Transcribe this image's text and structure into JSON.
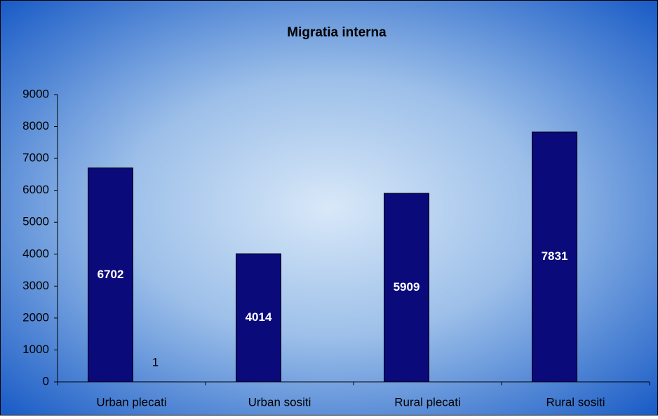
{
  "chart_data": {
    "type": "bar",
    "title": "Migratia interna",
    "categories": [
      "Urban plecati",
      "Urban sositi",
      "Rural plecati",
      "Rural sositi"
    ],
    "series": [
      {
        "color": "#0a0a7a",
        "values": [
          6702,
          4014,
          5909,
          7831
        ]
      },
      {
        "color": "#0a0a7a",
        "values": [
          1,
          null,
          null,
          null
        ]
      }
    ],
    "ylim": [
      0,
      9000
    ],
    "yticks": [
      0,
      1000,
      2000,
      3000,
      4000,
      5000,
      6000,
      7000,
      8000,
      9000
    ]
  }
}
